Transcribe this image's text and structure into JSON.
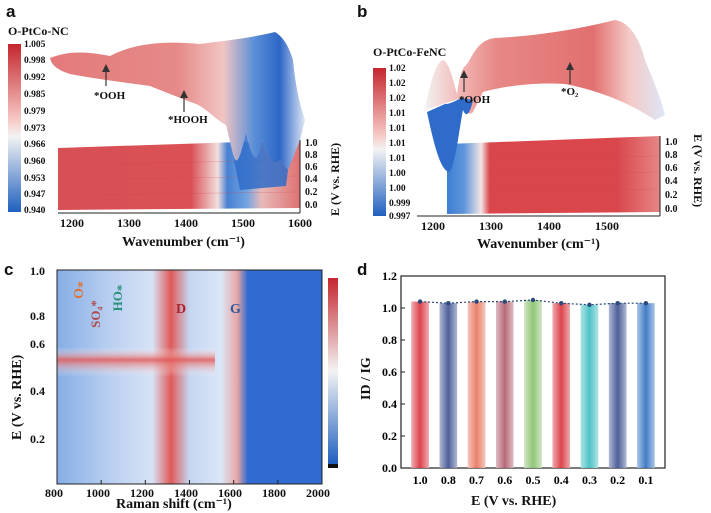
{
  "chart_data": [
    {
      "panel": "a",
      "type": "heatmap",
      "title": "O-PtCo-NC",
      "xlabel": "Wavenumber (cm⁻¹)",
      "ylabel": "E (V vs. RHE)",
      "x_ticks": [
        "1200",
        "1300",
        "1400",
        "1500",
        "1600"
      ],
      "y_ticks": [
        "0.0",
        "0.2",
        "0.4",
        "0.6",
        "0.8",
        "1.0"
      ],
      "colorbar": [
        "1.005",
        "0.998",
        "0.992",
        "0.985",
        "0.979",
        "0.973",
        "0.966",
        "0.960",
        "0.953",
        "0.947",
        "0.940"
      ],
      "annotations": [
        "*OOH",
        "*HOOH"
      ]
    },
    {
      "panel": "b",
      "type": "heatmap",
      "title": "O-PtCo-FeNC",
      "xlabel": "Wavenumber (cm⁻¹)",
      "ylabel": "E (V vs. RHE)",
      "x_ticks": [
        "1200",
        "1300",
        "1400",
        "1500",
        "1600"
      ],
      "y_ticks": [
        "0.0",
        "0.2",
        "0.4",
        "0.6",
        "0.8",
        "1.0"
      ],
      "colorbar": [
        "1.02",
        "1.02",
        "1.02",
        "1.01",
        "1.01",
        "1.01",
        "1.01",
        "1.00",
        "1.00",
        "0.999",
        "0.997"
      ],
      "annotations": [
        "*OOH",
        "*O₂"
      ]
    },
    {
      "panel": "c",
      "type": "heatmap",
      "xlabel": "Raman shift (cm⁻¹)",
      "ylabel": "E (V vs. RHE)",
      "xlim": [
        800,
        2000
      ],
      "ylim": [
        0.1,
        1.0
      ],
      "x_ticks": [
        "800",
        "1000",
        "1200",
        "1400",
        "1600",
        "1800",
        "2000"
      ],
      "y_ticks": [
        "0.2",
        "0.4",
        "0.6",
        "0.8",
        "1.0"
      ],
      "annotations": [
        "*O",
        "SO₄*",
        "*OH",
        "D",
        "G"
      ]
    },
    {
      "panel": "d",
      "type": "bar",
      "xlabel": "E (V vs. RHE)",
      "ylabel": "ID / IG",
      "categories": [
        "1.0",
        "0.8",
        "0.7",
        "0.6",
        "0.5",
        "0.4",
        "0.3",
        "0.2",
        "0.1"
      ],
      "values": [
        1.04,
        1.03,
        1.04,
        1.04,
        1.05,
        1.03,
        1.02,
        1.03,
        1.03
      ],
      "colors": [
        "#d9303a",
        "#3b4f8f",
        "#e8735a",
        "#b05a6a",
        "#86c06a",
        "#d9303a",
        "#3bbcc0",
        "#3b4f8f",
        "#2f6fc0"
      ],
      "ylim": [
        0.0,
        1.2
      ],
      "y_ticks": [
        "0.0",
        "0.2",
        "0.4",
        "0.6",
        "0.8",
        "1.0",
        "1.2"
      ]
    }
  ]
}
